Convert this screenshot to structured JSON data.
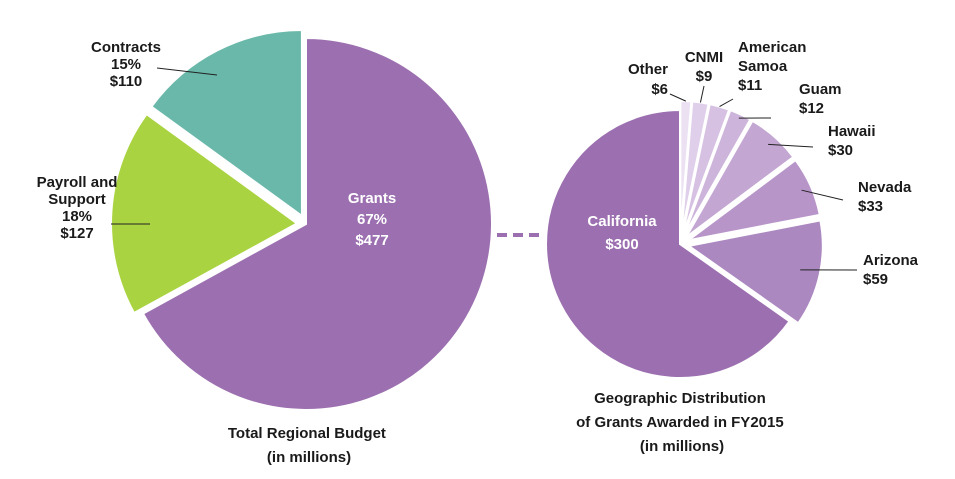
{
  "colors": {
    "grants": "#9c70b0",
    "payroll": "#a9d340",
    "contracts": "#69b8a9",
    "california": "#9c70b0",
    "arizona": "#ab88c0",
    "nevada": "#b895c9",
    "hawaii": "#c3a6d2",
    "guam": "#cdb4db",
    "american_samoa": "#d6c1e2",
    "cnmi": "#dfcfea",
    "other": "#ebe1f2",
    "connector": "#9c70b0"
  },
  "chart_data": [
    {
      "type": "pie",
      "caption": [
        "Total Regional Budget",
        "(in millions)"
      ],
      "slices": [
        {
          "key": "grants",
          "label": [
            "Grants",
            "67%",
            "$477"
          ],
          "percent": 67,
          "value": 477
        },
        {
          "key": "payroll",
          "label": [
            "Payroll and",
            "Support",
            "18%",
            "$127"
          ],
          "percent": 18,
          "value": 127
        },
        {
          "key": "contracts",
          "label": [
            "Contracts",
            "15%",
            "$110"
          ],
          "percent": 15,
          "value": 110
        }
      ]
    },
    {
      "type": "pie",
      "caption": [
        "Geographic Distribution",
        "of Grants Awarded in FY2015",
        "(in millions)"
      ],
      "slices": [
        {
          "key": "california",
          "label": [
            "California",
            "$300"
          ],
          "value": 300
        },
        {
          "key": "arizona",
          "label": [
            "Arizona",
            "$59"
          ],
          "value": 59
        },
        {
          "key": "nevada",
          "label": [
            "Nevada",
            "$33"
          ],
          "value": 33
        },
        {
          "key": "hawaii",
          "label": [
            "Hawaii",
            "$30"
          ],
          "value": 30
        },
        {
          "key": "guam",
          "label": [
            "Guam",
            "$12"
          ],
          "value": 12
        },
        {
          "key": "american_samoa",
          "label": [
            "American",
            "Samoa",
            "$11"
          ],
          "value": 11
        },
        {
          "key": "cnmi",
          "label": [
            "CNMI",
            "$9"
          ],
          "value": 9
        },
        {
          "key": "other",
          "label": [
            "Other",
            "$6"
          ],
          "value": 6
        }
      ]
    }
  ]
}
